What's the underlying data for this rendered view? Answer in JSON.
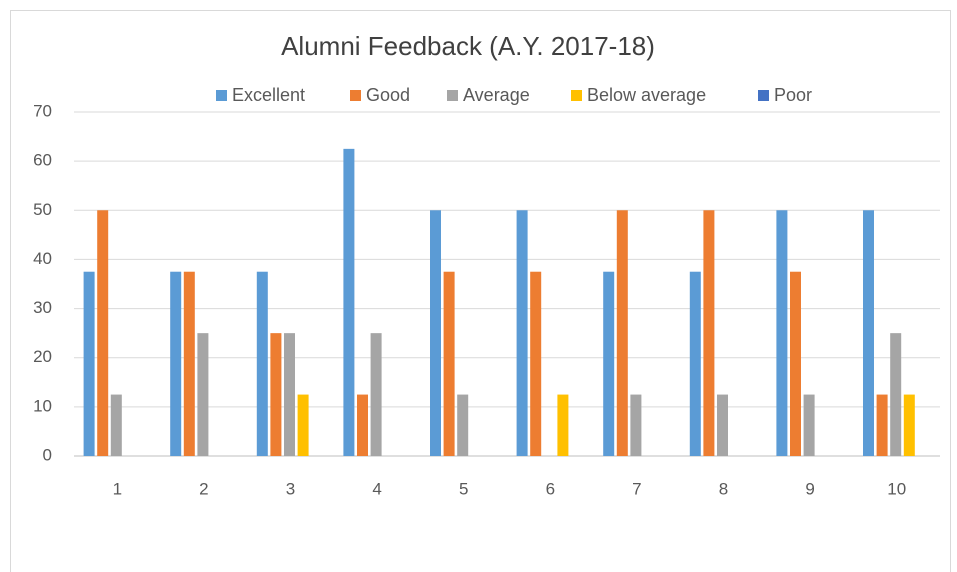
{
  "chart_data": {
    "type": "bar",
    "title": "Alumni Feedback (A.Y. 2017-18)",
    "categories": [
      "1",
      "2",
      "3",
      "4",
      "5",
      "6",
      "7",
      "8",
      "9",
      "10"
    ],
    "series": [
      {
        "name": "Excellent",
        "color": "#5b9bd5",
        "values": [
          37.5,
          37.5,
          37.5,
          62.5,
          50,
          50,
          37.5,
          37.5,
          50,
          50
        ]
      },
      {
        "name": "Good",
        "color": "#ed7d31",
        "values": [
          50,
          37.5,
          25,
          12.5,
          37.5,
          37.5,
          50,
          50,
          37.5,
          12.5
        ]
      },
      {
        "name": "Average",
        "color": "#a5a5a5",
        "values": [
          12.5,
          25,
          25,
          25,
          12.5,
          0,
          12.5,
          12.5,
          12.5,
          25
        ]
      },
      {
        "name": "Below average",
        "color": "#ffc000",
        "values": [
          0,
          0,
          12.5,
          0,
          0,
          12.5,
          0,
          0,
          0,
          12.5
        ]
      },
      {
        "name": "Poor",
        "color": "#4472c4",
        "values": [
          0,
          0,
          0,
          0,
          0,
          0,
          0,
          0,
          0,
          0
        ]
      }
    ],
    "ylim": [
      0,
      70
    ],
    "yticks": [
      0,
      10,
      20,
      30,
      40,
      50,
      60,
      70
    ],
    "grid": true,
    "legend": "top"
  }
}
